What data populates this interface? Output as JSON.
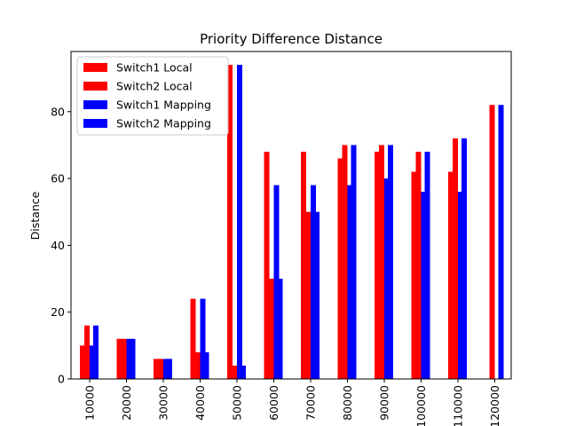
{
  "chart_data": {
    "type": "bar",
    "title": "Priority Difference Distance",
    "xlabel": "",
    "ylabel": "Distance",
    "ylim": [
      0,
      98
    ],
    "yticks": [
      0,
      20,
      40,
      60,
      80
    ],
    "categories": [
      "10000",
      "20000",
      "30000",
      "40000",
      "50000",
      "60000",
      "70000",
      "80000",
      "90000",
      "100000",
      "110000",
      "120000"
    ],
    "series": [
      {
        "name": "Switch1 Local",
        "color": "#ff0000",
        "values": [
          10,
          12,
          6,
          24,
          94,
          68,
          68,
          66,
          68,
          62,
          62,
          0
        ]
      },
      {
        "name": "Switch2 Local",
        "color": "#ff0000",
        "values": [
          16,
          12,
          6,
          8,
          4,
          30,
          50,
          70,
          70,
          68,
          72,
          82
        ]
      },
      {
        "name": "Switch1 Mapping",
        "color": "#0000ff",
        "values": [
          10,
          12,
          6,
          24,
          94,
          58,
          58,
          58,
          60,
          56,
          56,
          0
        ]
      },
      {
        "name": "Switch2 Mapping",
        "color": "#0000ff",
        "values": [
          16,
          12,
          6,
          8,
          4,
          30,
          50,
          70,
          70,
          68,
          72,
          82
        ]
      }
    ],
    "legend_position": "top-left",
    "grid": false
  }
}
